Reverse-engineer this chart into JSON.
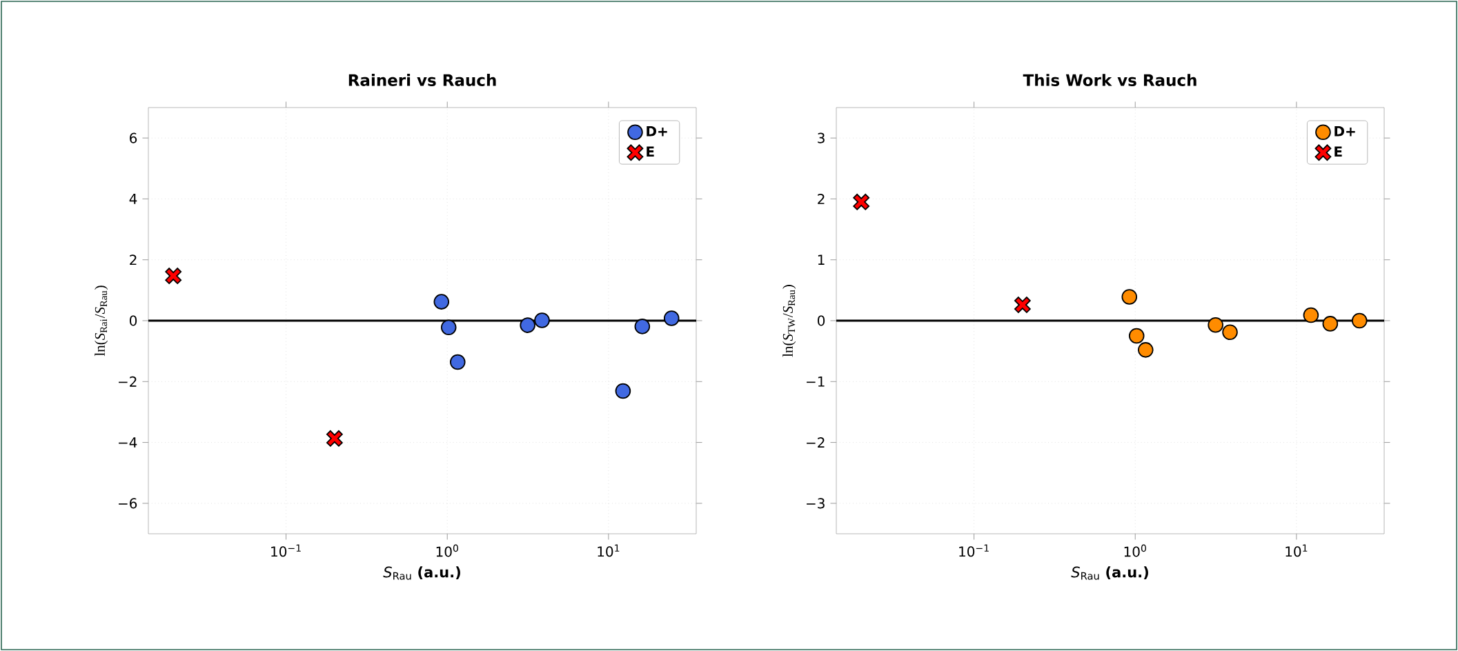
{
  "chart_data": [
    {
      "type": "scatter",
      "title": "Raineri vs Rauch",
      "xlabel": "*S*$_{Rau}$ **(a.u.)**",
      "ylabel": "ln(*S*$_{Rai}$/*S*$_{Rau}$)",
      "log": "x",
      "grid": true,
      "legend": "top right",
      "xlim": [
        0.014,
        35
      ],
      "ylim": [
        -7,
        7
      ],
      "xticks": [
        {
          "value": 0.1,
          "label": "10$^{−1}$"
        },
        {
          "value": 1,
          "label": "10$^{0}$"
        },
        {
          "value": 10,
          "label": "10$^{1}$"
        }
      ],
      "yticks": [
        {
          "value": -6,
          "label": "−6"
        },
        {
          "value": -4,
          "label": "−4"
        },
        {
          "value": -2,
          "label": "−2"
        },
        0,
        2,
        4,
        6
      ],
      "ref_lines": [
        {
          "axis": "y",
          "value": 0,
          "color": "#000000"
        }
      ],
      "series": [
        {
          "name": "D+",
          "color": "#4169e1",
          "marker": "circle",
          "x": [
            0.92,
            1.02,
            1.16,
            3.15,
            3.87,
            12.3,
            16.2,
            24.6
          ],
          "values": [
            0.62,
            -0.22,
            -1.36,
            -0.15,
            0.01,
            -2.31,
            -0.19,
            0.08
          ]
        },
        {
          "name": "E",
          "color": "#ff0000",
          "marker": "cross",
          "x": [
            0.02,
            0.2
          ],
          "values": [
            1.47,
            -3.87
          ]
        }
      ]
    },
    {
      "type": "scatter",
      "title": "This Work vs Rauch",
      "xlabel": "*S*$_{Rau}$ **(a.u.)**",
      "ylabel": "ln(*S*$_{TW}$/*S*$_{Rau}$)",
      "log": "x",
      "grid": true,
      "legend": "top right",
      "xlim": [
        0.014,
        35
      ],
      "ylim": [
        -3.5,
        3.5
      ],
      "xticks": [
        {
          "value": 0.1,
          "label": "10$^{−1}$"
        },
        {
          "value": 1,
          "label": "10$^{0}$"
        },
        {
          "value": 10,
          "label": "10$^{1}$"
        }
      ],
      "yticks": [
        {
          "value": -3,
          "label": "−3"
        },
        {
          "value": -2,
          "label": "−2"
        },
        {
          "value": -1,
          "label": "−1"
        },
        0,
        1,
        2,
        3
      ],
      "ref_lines": [
        {
          "axis": "y",
          "value": 0,
          "color": "#000000"
        }
      ],
      "series": [
        {
          "name": "D+",
          "color": "#ff8c00",
          "marker": "circle",
          "x": [
            0.92,
            1.02,
            1.16,
            3.15,
            3.87,
            12.3,
            16.2,
            24.6
          ],
          "values": [
            0.39,
            -0.25,
            -0.48,
            -0.07,
            -0.19,
            0.09,
            -0.05,
            0.0
          ]
        },
        {
          "name": "E",
          "color": "#ff0000",
          "marker": "cross",
          "x": [
            0.02,
            0.2
          ],
          "values": [
            1.95,
            0.26
          ]
        }
      ]
    }
  ]
}
